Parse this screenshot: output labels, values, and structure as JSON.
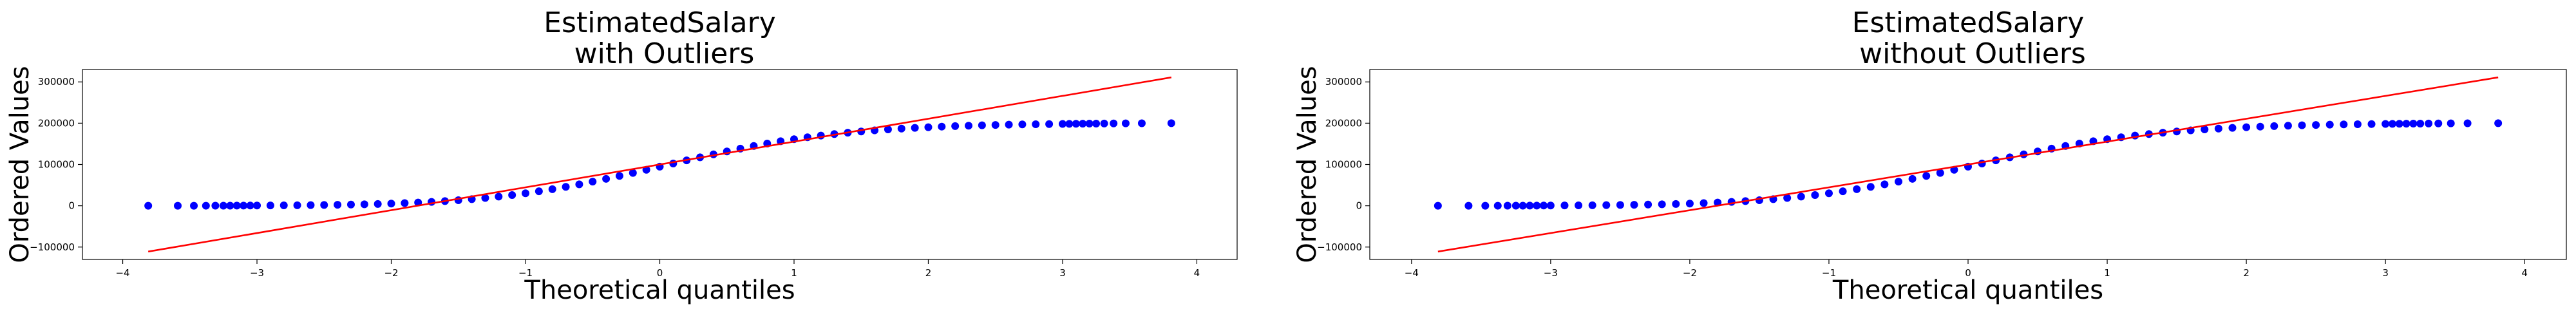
{
  "chart_data": [
    {
      "type": "scatter",
      "title": "EstimatedSalary\n with Outliers",
      "xlabel": "Theoretical quantiles",
      "ylabel": "Ordered Values",
      "xlim": [
        -4.3,
        4.3
      ],
      "ylim": [
        -130000,
        330000
      ],
      "xticks": [
        -4,
        -3,
        -2,
        -1,
        0,
        1,
        2,
        3,
        4
      ],
      "xtick_labels": [
        "−4",
        "−3",
        "−2",
        "−1",
        "0",
        "1",
        "2",
        "3",
        "4"
      ],
      "yticks": [
        -100000,
        0,
        100000,
        200000,
        300000
      ],
      "ytick_labels": [
        "−100000",
        "0",
        "100000",
        "200000",
        "300000"
      ],
      "grid": false,
      "series": [
        {
          "kind": "points",
          "color": "#0000ff",
          "points": [
            [
              -3.81,
              12
            ],
            [
              -3.59,
              30
            ],
            [
              -3.47,
              60
            ],
            [
              -3.38,
              100
            ],
            [
              -3.31,
              150
            ],
            [
              -3.25,
              200
            ],
            [
              -3.2,
              260
            ],
            [
              -3.15,
              330
            ],
            [
              -3.1,
              410
            ],
            [
              -3.05,
              500
            ],
            [
              -3.0,
              600
            ],
            [
              -2.9,
              800
            ],
            [
              -2.8,
              1000
            ],
            [
              -2.7,
              1250
            ],
            [
              -2.6,
              1550
            ],
            [
              -2.5,
              1900
            ],
            [
              -2.4,
              2350
            ],
            [
              -2.3,
              2900
            ],
            [
              -2.2,
              3550
            ],
            [
              -2.1,
              4350
            ],
            [
              -2.0,
              5300
            ],
            [
              -1.9,
              6450
            ],
            [
              -1.8,
              7800
            ],
            [
              -1.7,
              9400
            ],
            [
              -1.6,
              11300
            ],
            [
              -1.5,
              13500
            ],
            [
              -1.4,
              16000
            ],
            [
              -1.3,
              18900
            ],
            [
              -1.2,
              22200
            ],
            [
              -1.1,
              26000
            ],
            [
              -1.0,
              30200
            ],
            [
              -0.9,
              35000
            ],
            [
              -0.8,
              40200
            ],
            [
              -0.7,
              45800
            ],
            [
              -0.6,
              51900
            ],
            [
              -0.5,
              58400
            ],
            [
              -0.4,
              65200
            ],
            [
              -0.3,
              72300
            ],
            [
              -0.2,
              79600
            ],
            [
              -0.1,
              87100
            ],
            [
              0.0,
              94700
            ],
            [
              0.1,
              102300
            ],
            [
              0.2,
              109900
            ],
            [
              0.3,
              117300
            ],
            [
              0.4,
              124600
            ],
            [
              0.5,
              131600
            ],
            [
              0.6,
              138400
            ],
            [
              0.7,
              144800
            ],
            [
              0.8,
              150700
            ],
            [
              0.9,
              156300
            ],
            [
              1.0,
              161300
            ],
            [
              1.1,
              165900
            ],
            [
              1.2,
              170000
            ],
            [
              1.3,
              173700
            ],
            [
              1.4,
              177000
            ],
            [
              1.5,
              180000
            ],
            [
              1.6,
              182600
            ],
            [
              1.7,
              184900
            ],
            [
              1.8,
              186900
            ],
            [
              1.9,
              188700
            ],
            [
              2.0,
              190300
            ],
            [
              2.1,
              191700
            ],
            [
              2.2,
              192900
            ],
            [
              2.3,
              194000
            ],
            [
              2.4,
              194900
            ],
            [
              2.5,
              195700
            ],
            [
              2.6,
              196400
            ],
            [
              2.7,
              197000
            ],
            [
              2.8,
              197500
            ],
            [
              2.9,
              197900
            ],
            [
              3.0,
              198300
            ],
            [
              3.05,
              198500
            ],
            [
              3.1,
              198650
            ],
            [
              3.15,
              198800
            ],
            [
              3.2,
              198950
            ],
            [
              3.25,
              199100
            ],
            [
              3.31,
              199250
            ],
            [
              3.38,
              199400
            ],
            [
              3.47,
              199600
            ],
            [
              3.59,
              199800
            ],
            [
              3.81,
              199990
            ]
          ]
        },
        {
          "kind": "line",
          "color": "#ff0000",
          "points": [
            [
              -3.81,
              -111000
            ],
            [
              3.81,
              311000
            ]
          ]
        }
      ]
    },
    {
      "type": "scatter",
      "title": "EstimatedSalary\n without Outliers",
      "xlabel": "Theoretical quantiles",
      "ylabel": "Ordered Values",
      "xlim": [
        -4.3,
        4.3
      ],
      "ylim": [
        -130000,
        330000
      ],
      "xticks": [
        -4,
        -3,
        -2,
        -1,
        0,
        1,
        2,
        3,
        4
      ],
      "xtick_labels": [
        "−4",
        "−3",
        "−2",
        "−1",
        "0",
        "1",
        "2",
        "3",
        "4"
      ],
      "yticks": [
        -100000,
        0,
        100000,
        200000,
        300000
      ],
      "ytick_labels": [
        "−100000",
        "0",
        "100000",
        "200000",
        "300000"
      ],
      "grid": false,
      "series": [
        {
          "kind": "points",
          "color": "#0000ff",
          "points": [
            [
              -3.81,
              12
            ],
            [
              -3.59,
              30
            ],
            [
              -3.47,
              60
            ],
            [
              -3.38,
              100
            ],
            [
              -3.31,
              150
            ],
            [
              -3.25,
              200
            ],
            [
              -3.2,
              260
            ],
            [
              -3.15,
              330
            ],
            [
              -3.1,
              410
            ],
            [
              -3.05,
              500
            ],
            [
              -3.0,
              600
            ],
            [
              -2.9,
              800
            ],
            [
              -2.8,
              1000
            ],
            [
              -2.7,
              1250
            ],
            [
              -2.6,
              1550
            ],
            [
              -2.5,
              1900
            ],
            [
              -2.4,
              2350
            ],
            [
              -2.3,
              2900
            ],
            [
              -2.2,
              3550
            ],
            [
              -2.1,
              4350
            ],
            [
              -2.0,
              5300
            ],
            [
              -1.9,
              6450
            ],
            [
              -1.8,
              7800
            ],
            [
              -1.7,
              9400
            ],
            [
              -1.6,
              11300
            ],
            [
              -1.5,
              13500
            ],
            [
              -1.4,
              16000
            ],
            [
              -1.3,
              18900
            ],
            [
              -1.2,
              22200
            ],
            [
              -1.1,
              26000
            ],
            [
              -1.0,
              30200
            ],
            [
              -0.9,
              35000
            ],
            [
              -0.8,
              40200
            ],
            [
              -0.7,
              45800
            ],
            [
              -0.6,
              51900
            ],
            [
              -0.5,
              58400
            ],
            [
              -0.4,
              65200
            ],
            [
              -0.3,
              72300
            ],
            [
              -0.2,
              79600
            ],
            [
              -0.1,
              87100
            ],
            [
              0.0,
              94700
            ],
            [
              0.1,
              102300
            ],
            [
              0.2,
              109900
            ],
            [
              0.3,
              117300
            ],
            [
              0.4,
              124600
            ],
            [
              0.5,
              131600
            ],
            [
              0.6,
              138400
            ],
            [
              0.7,
              144800
            ],
            [
              0.8,
              150700
            ],
            [
              0.9,
              156300
            ],
            [
              1.0,
              161300
            ],
            [
              1.1,
              165900
            ],
            [
              1.2,
              170000
            ],
            [
              1.3,
              173700
            ],
            [
              1.4,
              177000
            ],
            [
              1.5,
              180000
            ],
            [
              1.6,
              182600
            ],
            [
              1.7,
              184900
            ],
            [
              1.8,
              186900
            ],
            [
              1.9,
              188700
            ],
            [
              2.0,
              190300
            ],
            [
              2.1,
              191700
            ],
            [
              2.2,
              192900
            ],
            [
              2.3,
              194000
            ],
            [
              2.4,
              194900
            ],
            [
              2.5,
              195700
            ],
            [
              2.6,
              196400
            ],
            [
              2.7,
              197000
            ],
            [
              2.8,
              197500
            ],
            [
              2.9,
              197900
            ],
            [
              3.0,
              198300
            ],
            [
              3.05,
              198500
            ],
            [
              3.1,
              198650
            ],
            [
              3.15,
              198800
            ],
            [
              3.2,
              198950
            ],
            [
              3.25,
              199100
            ],
            [
              3.31,
              199250
            ],
            [
              3.38,
              199400
            ],
            [
              3.47,
              199600
            ],
            [
              3.59,
              199800
            ],
            [
              3.81,
              199990
            ]
          ]
        },
        {
          "kind": "line",
          "color": "#ff0000",
          "points": [
            [
              -3.81,
              -111000
            ],
            [
              3.81,
              311000
            ]
          ]
        }
      ]
    }
  ]
}
